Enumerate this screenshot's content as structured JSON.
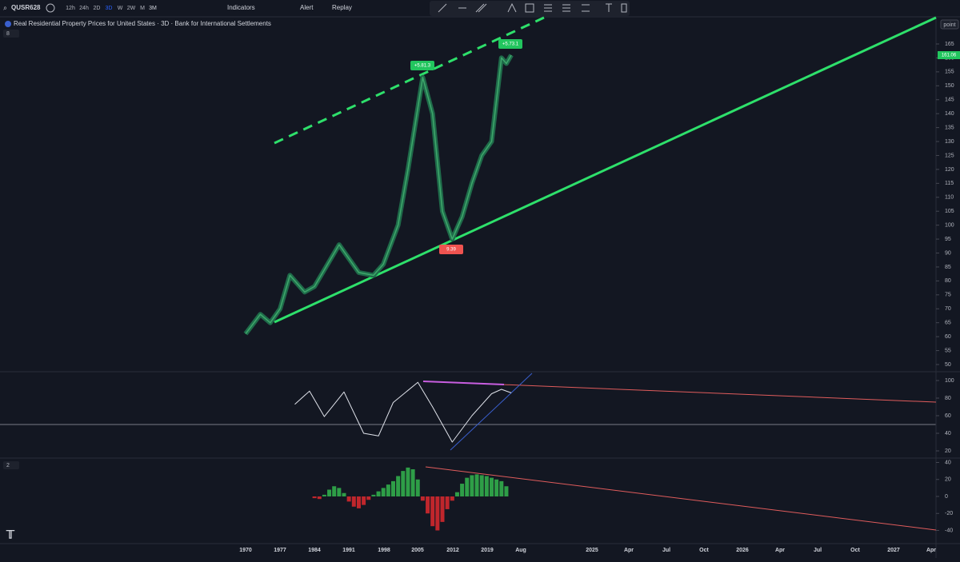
{
  "toolbar": {
    "symbol": "QUSR628",
    "intervals": [
      "12h",
      "24h",
      "2D",
      "3D",
      "W",
      "2W",
      "M",
      "3M"
    ],
    "indicators": "Indicators",
    "alert": "Alert",
    "replay": "Replay"
  },
  "chart": {
    "title": "Real Residential Property Prices for United States · 3D · Bank for International Settlements",
    "scale_mode": "point",
    "last_price": "161.06",
    "pane_counts": [
      "8",
      "2"
    ],
    "annotations": [
      "+5.81.3",
      "+5.73.1",
      "9.39"
    ],
    "price_ticks": [
      50,
      55,
      60,
      65,
      70,
      75,
      80,
      85,
      90,
      95,
      100,
      105,
      110,
      115,
      120,
      125,
      130,
      135,
      140,
      145,
      150,
      155,
      160,
      165
    ],
    "price": {
      "x": [
        1970,
        1973,
        1975,
        1977,
        1979,
        1982,
        1984,
        1989,
        1993,
        1996,
        1998,
        2001,
        2003,
        2006,
        2008,
        2010,
        2012,
        2014,
        2016,
        2018,
        2020,
        2022,
        2023,
        2024
      ],
      "values": [
        61,
        68,
        65,
        70,
        82,
        76,
        78,
        93,
        83,
        82,
        86,
        100,
        120,
        153,
        140,
        105,
        95,
        103,
        115,
        125,
        130,
        160,
        158,
        161
      ]
    },
    "osc_ticks": [
      20,
      40,
      60,
      80,
      100
    ],
    "osc": {
      "x": [
        1980,
        1983,
        1986,
        1990,
        1994,
        1997,
        2000,
        2005,
        2008,
        2012,
        2016,
        2020,
        2022,
        2024
      ],
      "values": [
        73,
        88,
        59,
        87,
        40,
        37,
        75,
        98,
        70,
        30,
        60,
        85,
        90,
        86
      ]
    },
    "hist_ticks": [
      -40,
      -20,
      0,
      20,
      40
    ],
    "hist": {
      "x": [
        1984,
        1985,
        1986,
        1987,
        1988,
        1989,
        1990,
        1991,
        1992,
        1993,
        1994,
        1995,
        1996,
        1997,
        1998,
        1999,
        2000,
        2001,
        2002,
        2003,
        2004,
        2005,
        2006,
        2007,
        2008,
        2009,
        2010,
        2011,
        2012,
        2013,
        2014,
        2015,
        2016,
        2017,
        2018,
        2019,
        2020,
        2021,
        2022,
        2023
      ],
      "values": [
        -2,
        -3,
        2,
        8,
        12,
        10,
        4,
        -6,
        -12,
        -14,
        -10,
        -4,
        2,
        6,
        10,
        14,
        18,
        24,
        30,
        34,
        32,
        20,
        -5,
        -20,
        -35,
        -40,
        -30,
        -15,
        -5,
        5,
        15,
        22,
        25,
        26,
        25,
        24,
        22,
        20,
        18,
        12
      ]
    },
    "time_labels": [
      "1970",
      "1977",
      "1984",
      "1991",
      "1998",
      "2005",
      "2012",
      "2019",
      "Aug",
      "2025",
      "Apr",
      "Jul",
      "Oct",
      "2026",
      "Apr",
      "Jul",
      "Oct",
      "2027",
      "Apr"
    ]
  }
}
